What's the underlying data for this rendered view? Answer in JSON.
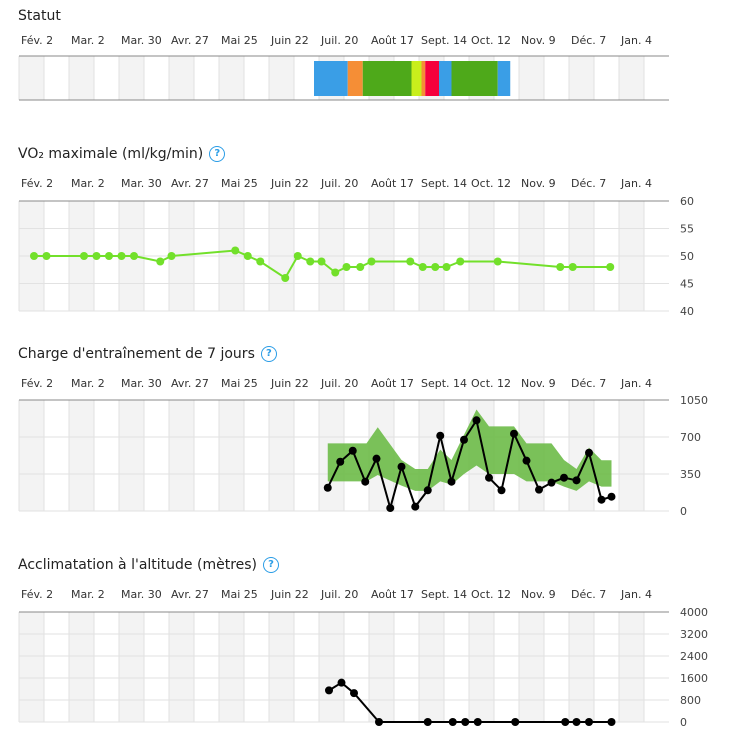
{
  "x_labels": [
    "Fév. 2",
    "Mar. 2",
    "Mar. 30",
    "Avr. 27",
    "Mai 25",
    "Juin 22",
    "Juil. 20",
    "Août 17",
    "Sept. 14",
    "Oct. 12",
    "Nov. 9",
    "Déc. 7",
    "Jan. 4"
  ],
  "help_glyph": "?",
  "chart_data": [
    {
      "type": "timeline",
      "title": "Statut",
      "x_unit": "weeks since Fév. 2",
      "segments": [
        {
          "start": 23.6,
          "end": 26.3,
          "color": "#3a9ee6"
        },
        {
          "start": 26.3,
          "end": 27.5,
          "color": "#f58e36"
        },
        {
          "start": 27.5,
          "end": 31.4,
          "color": "#4ea91a"
        },
        {
          "start": 31.4,
          "end": 32.2,
          "color": "#c9ef1c"
        },
        {
          "start": 32.2,
          "end": 32.5,
          "color": "#f58e36"
        },
        {
          "start": 32.5,
          "end": 33.6,
          "color": "#f5003c"
        },
        {
          "start": 33.6,
          "end": 34.6,
          "color": "#3a9ee6"
        },
        {
          "start": 34.6,
          "end": 38.3,
          "color": "#4ea91a"
        },
        {
          "start": 38.3,
          "end": 39.3,
          "color": "#3a9ee6"
        }
      ]
    },
    {
      "type": "line",
      "title": "VO₂ maximale (ml/kg/min)",
      "color": "#72e02a",
      "ylim": [
        40,
        60
      ],
      "yticks": [
        "60",
        "55",
        "50",
        "45",
        "40"
      ],
      "x": [
        1.2,
        2.2,
        5.2,
        6.2,
        7.2,
        8.2,
        9.2,
        11.3,
        12.2,
        17.3,
        18.3,
        19.3,
        21.3,
        22.3,
        23.3,
        24.2,
        25.3,
        26.2,
        27.3,
        28.2,
        31.3,
        32.3,
        33.3,
        34.2,
        35.3,
        38.3,
        43.3,
        44.3,
        47.3
      ],
      "y": [
        50,
        50,
        50,
        50,
        50,
        50,
        50,
        49,
        50,
        51,
        50,
        49,
        46,
        50,
        49,
        49,
        47,
        48,
        48,
        49,
        49,
        48,
        48,
        48,
        49,
        49,
        48,
        48,
        48
      ]
    },
    {
      "type": "line",
      "title": "Charge d'entraînement de 7 jours",
      "color": "#000000",
      "band_color": "#6dbb48",
      "ylim": [
        0,
        1050
      ],
      "yticks": [
        "1050",
        "700",
        "350",
        "0"
      ],
      "x": [
        24.7,
        25.7,
        26.7,
        27.7,
        28.6,
        29.7,
        30.6,
        31.7,
        32.7,
        33.7,
        34.6,
        35.6,
        36.6,
        37.6,
        38.6,
        39.6,
        40.6,
        41.6,
        42.6,
        43.6,
        44.6,
        45.6,
        46.6,
        47.4
      ],
      "y": [
        220,
        466,
        570,
        277,
        495,
        28,
        419,
        41,
        196,
        712,
        277,
        674,
        858,
        315,
        196,
        731,
        476,
        202,
        268,
        315,
        290,
        551,
        107,
        135
      ],
      "band": {
        "x": [
          24.7,
          27.8,
          28.7,
          30.6,
          31.7,
          32.7,
          33.7,
          34.6,
          35.6,
          36.6,
          37.6,
          38.6,
          39.6,
          40.6,
          41.6,
          42.6,
          43.6,
          44.6,
          45.6,
          46.6,
          47.4
        ],
        "upper": [
          640,
          640,
          792,
          482,
          397,
          397,
          580,
          482,
          720,
          960,
          800,
          800,
          800,
          640,
          640,
          640,
          482,
          397,
          600,
          480,
          480
        ],
        "lower": [
          280,
          280,
          340,
          240,
          190,
          190,
          280,
          250,
          350,
          430,
          350,
          350,
          350,
          280,
          280,
          280,
          230,
          190,
          280,
          230,
          230
        ]
      }
    },
    {
      "type": "line",
      "title": "Acclimatation à l'altitude (mètres)",
      "color": "#000000",
      "ylim": [
        0,
        4000
      ],
      "yticks": [
        "4000",
        "3200",
        "2400",
        "1600",
        "800",
        "0"
      ],
      "x": [
        24.8,
        25.8,
        26.8,
        28.8,
        32.7,
        34.7,
        35.7,
        36.7,
        39.7,
        43.7,
        44.6,
        45.6,
        47.4
      ],
      "y": [
        1150,
        1430,
        1050,
        0,
        0,
        0,
        0,
        0,
        0,
        0,
        0,
        0,
        0
      ]
    }
  ]
}
